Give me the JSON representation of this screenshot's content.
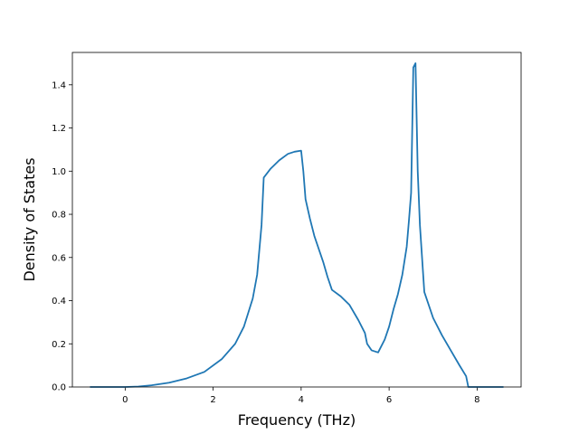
{
  "chart_data": {
    "type": "line",
    "title": "",
    "xlabel": "Frequency (THz)",
    "ylabel": "Density of States",
    "xlim": [
      -1.2,
      9.0
    ],
    "ylim": [
      0.0,
      1.55
    ],
    "xticks": [
      0,
      2,
      4,
      6,
      8
    ],
    "xtick_labels": [
      "0",
      "2",
      "4",
      "6",
      "8"
    ],
    "yticks": [
      0.0,
      0.2,
      0.4,
      0.6,
      0.8,
      1.0,
      1.2,
      1.4
    ],
    "ytick_labels": [
      "0.0",
      "0.2",
      "0.4",
      "0.6",
      "0.8",
      "1.0",
      "1.2",
      "1.4"
    ],
    "grid": false,
    "line_color": "#1f77b4",
    "series": [
      {
        "x": [
          -0.8,
          -0.4,
          0.0,
          0.3,
          0.6,
          1.0,
          1.4,
          1.8,
          2.2,
          2.5,
          2.7,
          2.9,
          3.0,
          3.1,
          3.15,
          3.3,
          3.5,
          3.7,
          3.85,
          4.0,
          4.05,
          4.1,
          4.2,
          4.3,
          4.4,
          4.5,
          4.6,
          4.7,
          4.9,
          5.1,
          5.3,
          5.45,
          5.5,
          5.6,
          5.75,
          5.9,
          6.0,
          6.1,
          6.2,
          6.3,
          6.4,
          6.45,
          6.5,
          6.55,
          6.6,
          6.65,
          6.7,
          6.8,
          7.0,
          7.2,
          7.4,
          7.6,
          7.75,
          7.8,
          8.0,
          8.6
        ],
        "y": [
          0.0,
          0.0,
          0.0,
          0.002,
          0.008,
          0.02,
          0.04,
          0.07,
          0.13,
          0.2,
          0.28,
          0.41,
          0.52,
          0.75,
          0.97,
          1.01,
          1.05,
          1.08,
          1.09,
          1.095,
          1.0,
          0.87,
          0.78,
          0.7,
          0.64,
          0.58,
          0.51,
          0.45,
          0.42,
          0.38,
          0.31,
          0.25,
          0.2,
          0.17,
          0.16,
          0.22,
          0.28,
          0.36,
          0.43,
          0.52,
          0.65,
          0.77,
          0.9,
          1.48,
          1.5,
          1.0,
          0.75,
          0.44,
          0.32,
          0.24,
          0.17,
          0.1,
          0.05,
          0.0,
          0.0,
          0.0
        ]
      }
    ]
  }
}
